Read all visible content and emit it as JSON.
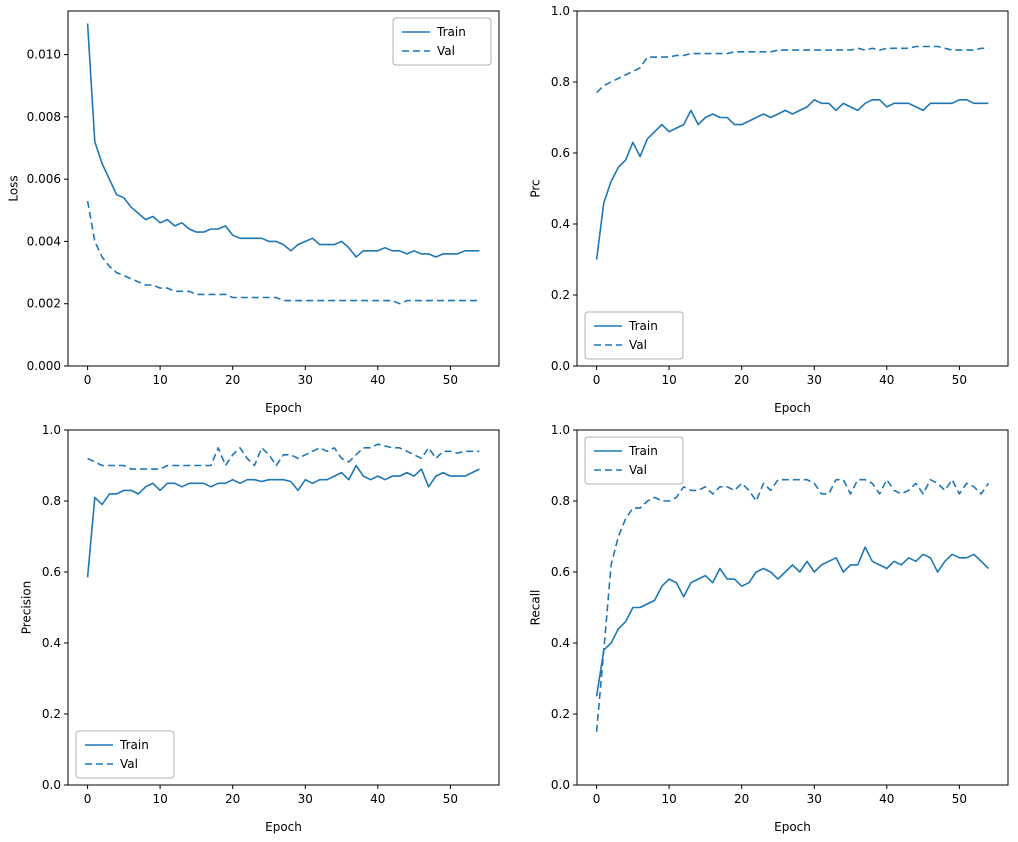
{
  "figure": {
    "background": "#ffffff",
    "line_color": "#1f77b4",
    "legend_border_color": "#b0b0b0"
  },
  "epochs": [
    0,
    1,
    2,
    3,
    4,
    5,
    6,
    7,
    8,
    9,
    10,
    11,
    12,
    13,
    14,
    15,
    16,
    17,
    18,
    19,
    20,
    21,
    22,
    23,
    24,
    25,
    26,
    27,
    28,
    29,
    30,
    31,
    32,
    33,
    34,
    35,
    36,
    37,
    38,
    39,
    40,
    41,
    42,
    43,
    44,
    45,
    46,
    47,
    48,
    49,
    50,
    51,
    52,
    53,
    54
  ],
  "chart_data": [
    {
      "type": "line",
      "name": "loss",
      "title": "",
      "xlabel": "Epoch",
      "ylabel": "Loss",
      "xlim": [
        -2.7,
        56.7
      ],
      "ylim": [
        0,
        0.0114
      ],
      "xticks": [
        0,
        10,
        20,
        30,
        40,
        50
      ],
      "yticks": [
        0,
        0.002,
        0.004,
        0.006,
        0.008,
        0.01
      ],
      "ytick_labels": [
        "0.000",
        "0.002",
        "0.004",
        "0.006",
        "0.008",
        "0.010"
      ],
      "grid": false,
      "legend_pos": "upper-right",
      "series": [
        {
          "name": "Train",
          "style": "solid",
          "values": [
            0.011,
            0.0072,
            0.0065,
            0.006,
            0.0055,
            0.0054,
            0.0051,
            0.0049,
            0.0047,
            0.0048,
            0.0046,
            0.0047,
            0.0045,
            0.0046,
            0.0044,
            0.0043,
            0.0043,
            0.0044,
            0.0044,
            0.0045,
            0.0042,
            0.0041,
            0.0041,
            0.0041,
            0.0041,
            0.004,
            0.004,
            0.0039,
            0.0037,
            0.0039,
            0.004,
            0.0041,
            0.0039,
            0.0039,
            0.0039,
            0.004,
            0.0038,
            0.0035,
            0.0037,
            0.0037,
            0.0037,
            0.0038,
            0.0037,
            0.0037,
            0.0036,
            0.0037,
            0.0036,
            0.0036,
            0.0035,
            0.0036,
            0.0036,
            0.0036,
            0.0037,
            0.0037,
            0.0037
          ]
        },
        {
          "name": "Val",
          "style": "dashed",
          "values": [
            0.0053,
            0.004,
            0.0035,
            0.0032,
            0.003,
            0.0029,
            0.0028,
            0.0027,
            0.0026,
            0.0026,
            0.0025,
            0.0025,
            0.0024,
            0.0024,
            0.0024,
            0.0023,
            0.0023,
            0.0023,
            0.0023,
            0.0023,
            0.0022,
            0.0022,
            0.0022,
            0.0022,
            0.0022,
            0.0022,
            0.0022,
            0.0021,
            0.0021,
            0.0021,
            0.0021,
            0.0021,
            0.0021,
            0.0021,
            0.0021,
            0.0021,
            0.0021,
            0.0021,
            0.0021,
            0.0021,
            0.0021,
            0.0021,
            0.0021,
            0.002,
            0.0021,
            0.0021,
            0.0021,
            0.0021,
            0.0021,
            0.0021,
            0.0021,
            0.0021,
            0.0021,
            0.0021,
            0.0021
          ]
        }
      ]
    },
    {
      "type": "line",
      "name": "prc",
      "title": "",
      "xlabel": "Epoch",
      "ylabel": "Prc",
      "xlim": [
        -2.7,
        56.7
      ],
      "ylim": [
        0,
        1.0
      ],
      "xticks": [
        0,
        10,
        20,
        30,
        40,
        50
      ],
      "yticks": [
        0,
        0.2,
        0.4,
        0.6,
        0.8,
        1.0
      ],
      "ytick_labels": [
        "0.0",
        "0.2",
        "0.4",
        "0.6",
        "0.8",
        "1.0"
      ],
      "grid": false,
      "legend_pos": "lower-left",
      "series": [
        {
          "name": "Train",
          "style": "solid",
          "values": [
            0.3,
            0.46,
            0.52,
            0.56,
            0.58,
            0.63,
            0.59,
            0.64,
            0.66,
            0.68,
            0.66,
            0.67,
            0.68,
            0.72,
            0.68,
            0.7,
            0.71,
            0.7,
            0.7,
            0.68,
            0.68,
            0.69,
            0.7,
            0.71,
            0.7,
            0.71,
            0.72,
            0.71,
            0.72,
            0.73,
            0.75,
            0.74,
            0.74,
            0.72,
            0.74,
            0.73,
            0.72,
            0.74,
            0.75,
            0.75,
            0.73,
            0.74,
            0.74,
            0.74,
            0.73,
            0.72,
            0.74,
            0.74,
            0.74,
            0.74,
            0.75,
            0.75,
            0.74,
            0.74,
            0.74
          ]
        },
        {
          "name": "Val",
          "style": "dashed",
          "values": [
            0.77,
            0.79,
            0.8,
            0.81,
            0.82,
            0.83,
            0.84,
            0.87,
            0.87,
            0.87,
            0.87,
            0.875,
            0.875,
            0.88,
            0.88,
            0.88,
            0.88,
            0.88,
            0.88,
            0.885,
            0.885,
            0.885,
            0.885,
            0.885,
            0.885,
            0.89,
            0.89,
            0.89,
            0.89,
            0.89,
            0.89,
            0.89,
            0.89,
            0.89,
            0.89,
            0.89,
            0.895,
            0.89,
            0.895,
            0.89,
            0.895,
            0.895,
            0.895,
            0.895,
            0.9,
            0.9,
            0.9,
            0.9,
            0.895,
            0.89,
            0.89,
            0.89,
            0.89,
            0.895,
            0.895
          ]
        }
      ]
    },
    {
      "type": "line",
      "name": "precision",
      "title": "",
      "xlabel": "Epoch",
      "ylabel": "Precision",
      "xlim": [
        -2.7,
        56.7
      ],
      "ylim": [
        0,
        1.0
      ],
      "xticks": [
        0,
        10,
        20,
        30,
        40,
        50
      ],
      "yticks": [
        0,
        0.2,
        0.4,
        0.6,
        0.8,
        1.0
      ],
      "ytick_labels": [
        "0.0",
        "0.2",
        "0.4",
        "0.6",
        "0.8",
        "1.0"
      ],
      "grid": false,
      "legend_pos": "lower-left",
      "series": [
        {
          "name": "Train",
          "style": "solid",
          "values": [
            0.585,
            0.81,
            0.79,
            0.82,
            0.82,
            0.83,
            0.83,
            0.82,
            0.84,
            0.85,
            0.83,
            0.85,
            0.85,
            0.84,
            0.85,
            0.85,
            0.85,
            0.84,
            0.85,
            0.85,
            0.86,
            0.85,
            0.86,
            0.86,
            0.855,
            0.86,
            0.86,
            0.86,
            0.855,
            0.83,
            0.86,
            0.85,
            0.86,
            0.86,
            0.87,
            0.88,
            0.86,
            0.9,
            0.87,
            0.86,
            0.87,
            0.86,
            0.87,
            0.87,
            0.88,
            0.87,
            0.89,
            0.84,
            0.87,
            0.88,
            0.87,
            0.87,
            0.87,
            0.88,
            0.89
          ]
        },
        {
          "name": "Val",
          "style": "dashed",
          "values": [
            0.92,
            0.91,
            0.9,
            0.9,
            0.9,
            0.9,
            0.89,
            0.89,
            0.89,
            0.89,
            0.89,
            0.9,
            0.9,
            0.9,
            0.9,
            0.9,
            0.9,
            0.9,
            0.95,
            0.9,
            0.93,
            0.95,
            0.92,
            0.9,
            0.95,
            0.93,
            0.9,
            0.93,
            0.93,
            0.92,
            0.93,
            0.94,
            0.95,
            0.94,
            0.95,
            0.92,
            0.91,
            0.93,
            0.95,
            0.95,
            0.96,
            0.955,
            0.95,
            0.95,
            0.94,
            0.93,
            0.92,
            0.95,
            0.92,
            0.94,
            0.94,
            0.935,
            0.94,
            0.94,
            0.94
          ]
        }
      ]
    },
    {
      "type": "line",
      "name": "recall",
      "title": "",
      "xlabel": "Epoch",
      "ylabel": "Recall",
      "xlim": [
        -2.7,
        56.7
      ],
      "ylim": [
        0,
        1.0
      ],
      "xticks": [
        0,
        10,
        20,
        30,
        40,
        50
      ],
      "yticks": [
        0,
        0.2,
        0.4,
        0.6,
        0.8,
        1.0
      ],
      "ytick_labels": [
        "0.0",
        "0.2",
        "0.4",
        "0.6",
        "0.8",
        "1.0"
      ],
      "grid": false,
      "legend_pos": "upper-left",
      "series": [
        {
          "name": "Train",
          "style": "solid",
          "values": [
            0.25,
            0.38,
            0.4,
            0.44,
            0.46,
            0.5,
            0.5,
            0.51,
            0.52,
            0.56,
            0.58,
            0.57,
            0.53,
            0.57,
            0.58,
            0.59,
            0.57,
            0.61,
            0.58,
            0.58,
            0.56,
            0.57,
            0.6,
            0.61,
            0.6,
            0.58,
            0.6,
            0.62,
            0.6,
            0.63,
            0.6,
            0.62,
            0.63,
            0.64,
            0.6,
            0.62,
            0.62,
            0.67,
            0.63,
            0.62,
            0.61,
            0.63,
            0.62,
            0.64,
            0.63,
            0.65,
            0.64,
            0.6,
            0.63,
            0.65,
            0.64,
            0.64,
            0.65,
            0.63,
            0.61
          ]
        },
        {
          "name": "Val",
          "style": "dashed",
          "values": [
            0.15,
            0.38,
            0.62,
            0.7,
            0.75,
            0.78,
            0.78,
            0.8,
            0.81,
            0.8,
            0.8,
            0.81,
            0.84,
            0.83,
            0.83,
            0.84,
            0.82,
            0.84,
            0.84,
            0.83,
            0.85,
            0.83,
            0.8,
            0.85,
            0.83,
            0.86,
            0.86,
            0.86,
            0.86,
            0.86,
            0.85,
            0.82,
            0.82,
            0.86,
            0.86,
            0.82,
            0.86,
            0.86,
            0.85,
            0.82,
            0.86,
            0.83,
            0.82,
            0.83,
            0.85,
            0.82,
            0.86,
            0.85,
            0.83,
            0.86,
            0.82,
            0.85,
            0.84,
            0.82,
            0.85
          ]
        }
      ]
    }
  ]
}
